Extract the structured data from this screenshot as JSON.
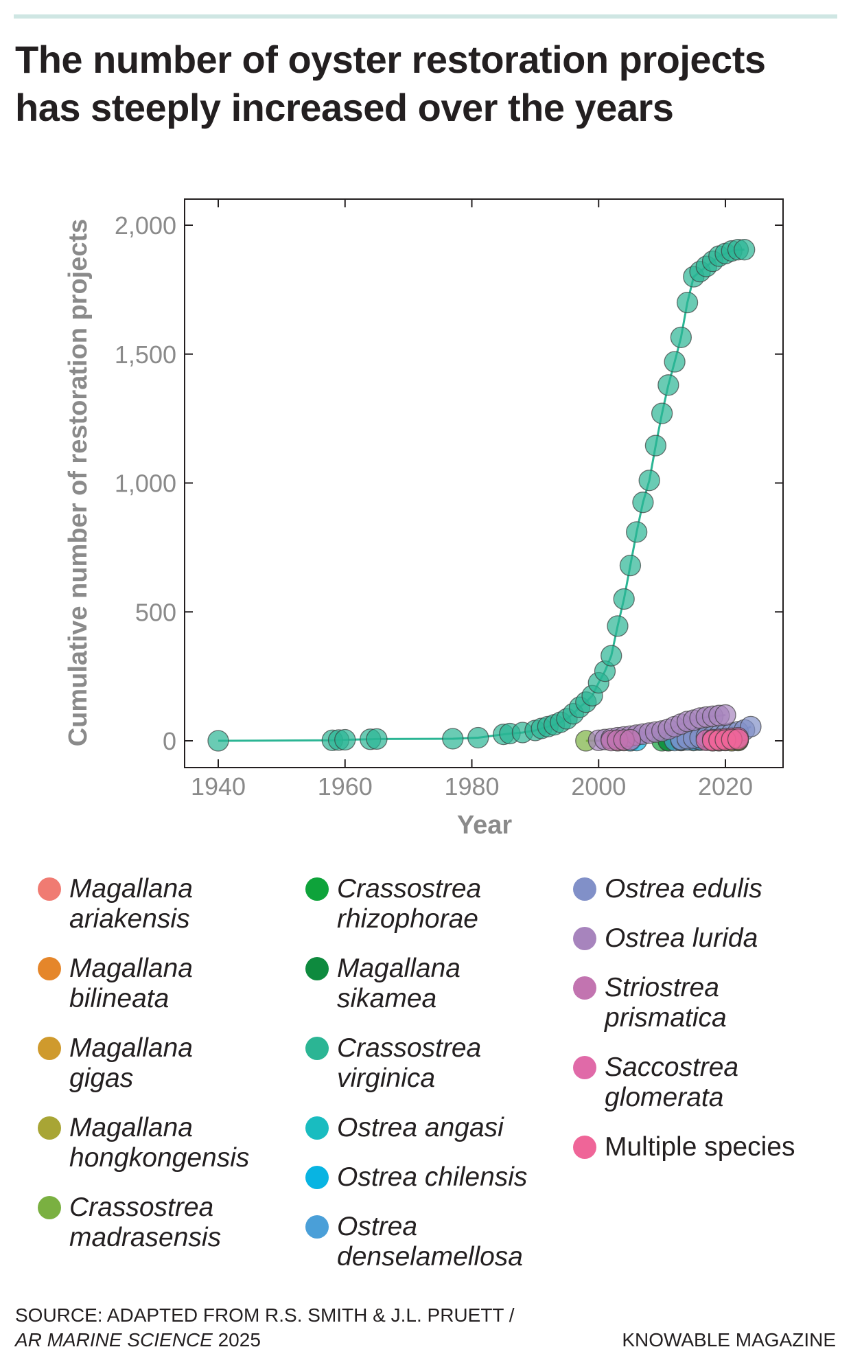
{
  "title": "The number of oyster restoration projects has steeply increased over the years",
  "source": {
    "prefix": "SOURCE: ADAPTED FROM R.S. SMITH & J.L. PRUETT /",
    "journal": "AR MARINE SCIENCE",
    "year": "2025"
  },
  "credit": "KNOWABLE MAGAZINE",
  "chart_data": {
    "type": "scatter",
    "title": "",
    "xlabel": "Year",
    "ylabel": "Cumulative number of restoration projects",
    "xlim": [
      1935,
      2030
    ],
    "ylim": [
      -100,
      2100
    ],
    "xticks": [
      1940,
      1960,
      1980,
      2000,
      2020
    ],
    "xtick_labels": [
      "1940",
      "1960",
      "1980",
      "2000",
      "2020"
    ],
    "yticks": [
      0,
      500,
      1000,
      1500,
      2000
    ],
    "ytick_labels": [
      "0",
      "500",
      "1,000",
      "1,500",
      "2,000"
    ],
    "grid": false,
    "legend_position": "bottom",
    "series": [
      {
        "name": "Magallana ariakensis",
        "color": "#f07b72",
        "points": [
          [
            2003,
            0
          ],
          [
            2004,
            1
          ]
        ]
      },
      {
        "name": "Magallana bilineata",
        "color": "#e5862a",
        "points": [
          [
            2019,
            0
          ],
          [
            2020,
            1
          ]
        ]
      },
      {
        "name": "Magallana gigas",
        "color": "#cf9a2d",
        "points": [
          [
            2018,
            0
          ],
          [
            2019,
            1
          ],
          [
            2020,
            2
          ],
          [
            2021,
            3
          ],
          [
            2022,
            4
          ]
        ]
      },
      {
        "name": "Magallana hongkongensis",
        "color": "#a8a535",
        "points": [
          [
            2021,
            0
          ],
          [
            2022,
            1
          ]
        ]
      },
      {
        "name": "Crassostrea madrasensis",
        "color": "#7ab041",
        "points": [
          [
            1998,
            0
          ],
          [
            2013,
            1
          ],
          [
            2022,
            2
          ]
        ]
      },
      {
        "name": "Crassostrea rhizophorae",
        "color": "#0ea33a",
        "points": [
          [
            2010,
            0
          ],
          [
            2011,
            1
          ]
        ]
      },
      {
        "name": "Magallana sikamea",
        "color": "#0e8a3e",
        "points": [
          [
            2011,
            0
          ]
        ]
      },
      {
        "name": "Crassostrea virginica",
        "color": "#2bb594",
        "points": [
          [
            1940,
            0
          ],
          [
            1958,
            2
          ],
          [
            1959,
            3
          ],
          [
            1960,
            4
          ],
          [
            1964,
            6
          ],
          [
            1965,
            7
          ],
          [
            1977,
            8
          ],
          [
            1981,
            12
          ],
          [
            1985,
            25
          ],
          [
            1986,
            28
          ],
          [
            1988,
            32
          ],
          [
            1990,
            40
          ],
          [
            1991,
            48
          ],
          [
            1992,
            55
          ],
          [
            1993,
            62
          ],
          [
            1994,
            72
          ],
          [
            1995,
            85
          ],
          [
            1996,
            105
          ],
          [
            1997,
            130
          ],
          [
            1998,
            150
          ],
          [
            1999,
            175
          ],
          [
            2000,
            225
          ],
          [
            2001,
            270
          ],
          [
            2002,
            330
          ],
          [
            2003,
            445
          ],
          [
            2004,
            550
          ],
          [
            2005,
            680
          ],
          [
            2006,
            810
          ],
          [
            2007,
            925
          ],
          [
            2008,
            1010
          ],
          [
            2009,
            1145
          ],
          [
            2010,
            1270
          ],
          [
            2011,
            1380
          ],
          [
            2012,
            1470
          ],
          [
            2013,
            1565
          ],
          [
            2014,
            1700
          ],
          [
            2015,
            1800
          ],
          [
            2016,
            1820
          ],
          [
            2017,
            1840
          ],
          [
            2018,
            1860
          ],
          [
            2019,
            1880
          ],
          [
            2020,
            1890
          ],
          [
            2021,
            1900
          ],
          [
            2022,
            1905
          ],
          [
            2023,
            1905
          ]
        ]
      },
      {
        "name": "Ostrea angasi",
        "color": "#19bcc0",
        "points": [
          [
            2015,
            1
          ],
          [
            2016,
            2
          ],
          [
            2017,
            3
          ],
          [
            2018,
            4
          ],
          [
            2019,
            5
          ],
          [
            2020,
            6
          ],
          [
            2021,
            8
          ],
          [
            2022,
            10
          ]
        ]
      },
      {
        "name": "Ostrea chilensis",
        "color": "#08b4e2",
        "points": [
          [
            2005,
            0
          ],
          [
            2006,
            1
          ]
        ]
      },
      {
        "name": "Ostrea denselamellosa",
        "color": "#4a9fd8",
        "points": [
          [
            2012,
            1
          ],
          [
            2013,
            2
          ],
          [
            2014,
            3
          ],
          [
            2015,
            4
          ],
          [
            2016,
            5
          ],
          [
            2017,
            6
          ],
          [
            2018,
            7
          ],
          [
            2019,
            8
          ],
          [
            2020,
            8
          ]
        ]
      },
      {
        "name": "Ostrea edulis",
        "color": "#8190c8",
        "points": [
          [
            2013,
            5
          ],
          [
            2014,
            8
          ],
          [
            2015,
            10
          ],
          [
            2016,
            12
          ],
          [
            2017,
            15
          ],
          [
            2018,
            18
          ],
          [
            2019,
            22
          ],
          [
            2020,
            26
          ],
          [
            2021,
            30
          ],
          [
            2022,
            35
          ],
          [
            2023,
            42
          ],
          [
            2024,
            55
          ]
        ]
      },
      {
        "name": "Ostrea lurida",
        "color": "#a784bd",
        "points": [
          [
            2000,
            2
          ],
          [
            2001,
            5
          ],
          [
            2002,
            8
          ],
          [
            2003,
            12
          ],
          [
            2004,
            15
          ],
          [
            2005,
            18
          ],
          [
            2006,
            22
          ],
          [
            2007,
            26
          ],
          [
            2008,
            30
          ],
          [
            2009,
            34
          ],
          [
            2010,
            38
          ],
          [
            2011,
            45
          ],
          [
            2012,
            55
          ],
          [
            2013,
            65
          ],
          [
            2014,
            75
          ],
          [
            2015,
            80
          ],
          [
            2016,
            88
          ],
          [
            2017,
            92
          ],
          [
            2018,
            95
          ],
          [
            2019,
            98
          ],
          [
            2020,
            100
          ]
        ]
      },
      {
        "name": "Striostrea prismatica",
        "color": "#c274b0",
        "points": [
          [
            2002,
            1
          ],
          [
            2003,
            2
          ],
          [
            2004,
            3
          ],
          [
            2005,
            4
          ]
        ]
      },
      {
        "name": "Saccostrea glomerata",
        "color": "#e06aa8",
        "points": [
          [
            2017,
            2
          ],
          [
            2018,
            4
          ],
          [
            2019,
            6
          ],
          [
            2020,
            8
          ],
          [
            2021,
            10
          ],
          [
            2022,
            12
          ]
        ]
      },
      {
        "name": "Multiple species",
        "color": "#ef6598",
        "points": [
          [
            2018,
            1
          ],
          [
            2019,
            2
          ],
          [
            2020,
            3
          ],
          [
            2021,
            5
          ],
          [
            2022,
            6
          ]
        ]
      }
    ]
  },
  "legend": {
    "columns": [
      [
        0,
        1,
        2,
        3,
        4
      ],
      [
        5,
        6,
        7,
        8,
        9,
        10
      ],
      [
        11,
        12,
        13,
        14,
        15
      ]
    ],
    "labels": [
      [
        "Magallana",
        "ariakensis"
      ],
      [
        "Magallana",
        "bilineata"
      ],
      [
        "Magallana",
        "gigas"
      ],
      [
        "Magallana",
        "hongkongensis"
      ],
      [
        "Crassostrea",
        "madrasensis"
      ],
      [
        "Crassostrea",
        "rhizophorae"
      ],
      [
        "Magallana",
        "sikamea"
      ],
      [
        "Crassostrea",
        "virginica"
      ],
      [
        "Ostrea angasi"
      ],
      [
        "Ostrea chilensis"
      ],
      [
        "Ostrea",
        "denselamellosa"
      ],
      [
        "Ostrea edulis"
      ],
      [
        "Ostrea lurida"
      ],
      [
        "Striostrea",
        "prismatica"
      ],
      [
        "Saccostrea",
        "glomerata"
      ],
      [
        "Multiple species"
      ]
    ]
  }
}
